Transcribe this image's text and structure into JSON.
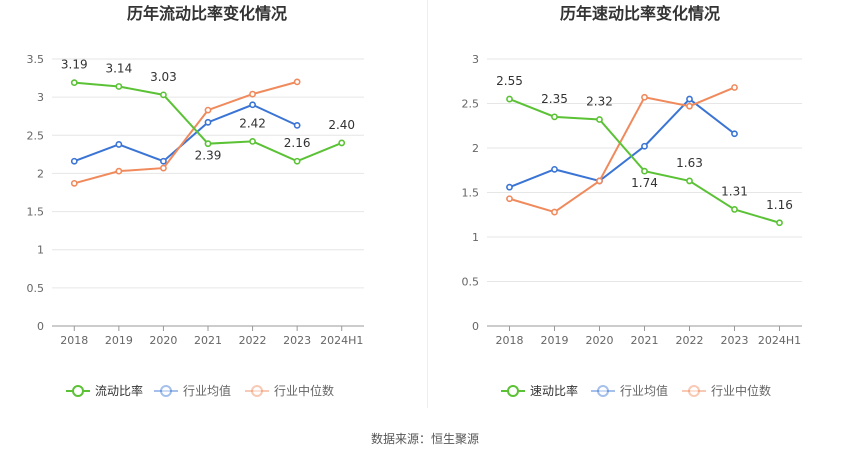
{
  "chart_data": [
    {
      "type": "line",
      "title": "历年流动比率变化情况",
      "categories": [
        "2018",
        "2019",
        "2020",
        "2021",
        "2022",
        "2023",
        "2024H1"
      ],
      "yticks": [
        "0",
        "0.5",
        "1",
        "1.5",
        "2",
        "2.5",
        "3",
        "3.5"
      ],
      "ylim": [
        0,
        3.5
      ],
      "grid": true,
      "legend_position": "bottom",
      "series": [
        {
          "name": "流动比率",
          "color": "#5bc236",
          "values": [
            3.19,
            3.14,
            3.03,
            2.39,
            2.42,
            2.16,
            2.4
          ],
          "labels": [
            "3.19",
            "3.14",
            "3.03",
            "2.39",
            "2.42",
            "2.16",
            "2.40"
          ]
        },
        {
          "name": "行业均值",
          "color": "#3a74d4",
          "values": [
            2.16,
            2.38,
            2.16,
            2.67,
            2.9,
            2.63,
            null
          ]
        },
        {
          "name": "行业中位数",
          "color": "#f08a5c",
          "values": [
            1.87,
            2.03,
            2.07,
            2.83,
            3.04,
            3.2,
            null
          ]
        }
      ]
    },
    {
      "type": "line",
      "title": "历年速动比率变化情况",
      "categories": [
        "2018",
        "2019",
        "2020",
        "2021",
        "2022",
        "2023",
        "2024H1"
      ],
      "yticks": [
        "0",
        "0.5",
        "1",
        "1.5",
        "2",
        "2.5",
        "3"
      ],
      "ylim": [
        0,
        3
      ],
      "grid": true,
      "legend_position": "bottom",
      "series": [
        {
          "name": "速动比率",
          "color": "#5bc236",
          "values": [
            2.55,
            2.35,
            2.32,
            1.74,
            1.63,
            1.31,
            1.16
          ],
          "labels": [
            "2.55",
            "2.35",
            "2.32",
            "1.74",
            "1.63",
            "1.31",
            "1.16"
          ]
        },
        {
          "name": "行业均值",
          "color": "#3a74d4",
          "values": [
            1.56,
            1.76,
            1.63,
            2.02,
            2.55,
            2.16,
            null
          ]
        },
        {
          "name": "行业中位数",
          "color": "#f08a5c",
          "values": [
            1.43,
            1.28,
            1.63,
            2.57,
            2.47,
            2.68,
            null
          ]
        }
      ]
    }
  ],
  "footer": "数据来源：恒生聚源"
}
